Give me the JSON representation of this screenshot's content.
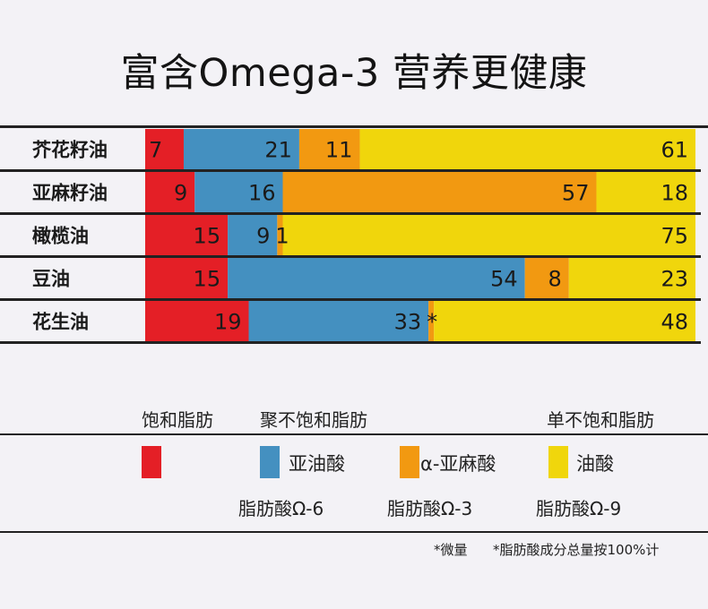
{
  "title": "富含Omega-3 营养更健康",
  "colors": {
    "saturated": "#e41f26",
    "linoleic": "#4490c0",
    "alpha_linolenic": "#f29911",
    "oleic": "#f0d60c",
    "text": "#1a1a1a",
    "rule": "#222222"
  },
  "chart_data": {
    "type": "bar",
    "orientation": "horizontal",
    "stacked": true,
    "title": "富含Omega-3 营养更健康",
    "xlim": [
      0,
      100
    ],
    "categories": [
      "芥花籽油",
      "亚麻籽油",
      "橄榄油",
      "豆油",
      "花生油"
    ],
    "series": [
      {
        "name": "饱和脂肪",
        "color": "#e41f26",
        "values": [
          7,
          9,
          15,
          15,
          19
        ],
        "labels": [
          "7",
          "9",
          "15",
          "15",
          "19"
        ]
      },
      {
        "name": "亚油酸",
        "color": "#4490c0",
        "values": [
          21,
          16,
          9,
          54,
          33
        ],
        "labels": [
          "21",
          "16",
          "9",
          "54",
          "33"
        ]
      },
      {
        "name": "α-亚麻酸",
        "color": "#f29911",
        "values": [
          11,
          57,
          1,
          8,
          1
        ],
        "labels": [
          "11",
          "57",
          "1",
          "8",
          "*"
        ]
      },
      {
        "name": "油酸",
        "color": "#f0d60c",
        "values": [
          61,
          18,
          75,
          23,
          48
        ],
        "labels": [
          "61",
          "18",
          "75",
          "23",
          "48"
        ]
      }
    ]
  },
  "legend": {
    "headers": {
      "saturated": "饱和脂肪",
      "polyunsaturated": "聚不饱和脂肪",
      "monounsaturated": "单不饱和脂肪"
    },
    "items": {
      "linoleic": "亚油酸",
      "alpha_linolenic": "α-亚麻酸",
      "oleic": "油酸"
    },
    "subs": {
      "omega6": "脂肪酸Ω-6",
      "omega3": "脂肪酸Ω-3",
      "omega9": "脂肪酸Ω-9"
    }
  },
  "footnotes": {
    "trace": "*微量",
    "basis": "*脂肪酸成分总量按100%计"
  }
}
